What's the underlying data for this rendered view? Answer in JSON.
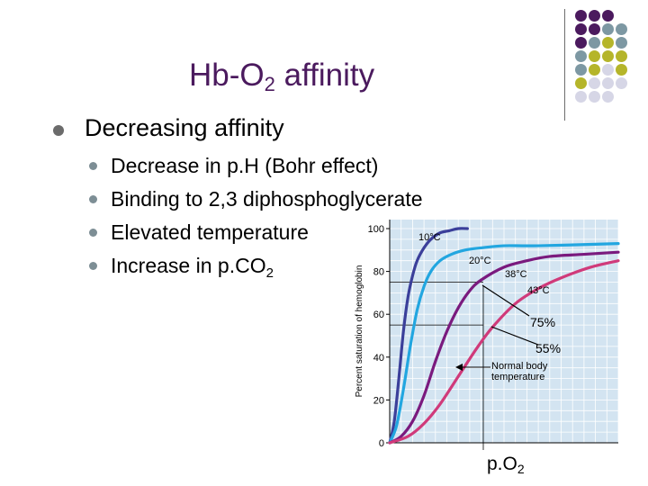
{
  "slide": {
    "title_main": "Hb-O",
    "title_sub": "2",
    "title_rest": " affinity",
    "heading": "Decreasing affinity",
    "bullets": [
      {
        "text": "Decrease in p.H (Bohr effect)",
        "sub": ""
      },
      {
        "text": "Binding to 2,3 diphosphoglycerate",
        "sub": ""
      },
      {
        "text": "Elevated temperature",
        "sub": ""
      },
      {
        "text": "Increase in p.CO",
        "sub": "2"
      }
    ],
    "callout_75": "75%",
    "callout_55": "55%",
    "xlabel_main": "p.O",
    "xlabel_sub": "2",
    "colors": {
      "title": "#4b1a5e",
      "purple": "#4b1a5e",
      "slate": "#7d98a3",
      "olive": "#b5b52a",
      "lilac": "#d6d6e6"
    }
  },
  "chart_data": {
    "type": "line",
    "ylabel": "Percent saturation of hemoglobin",
    "yticks": [
      0,
      20,
      40,
      60,
      80,
      100
    ],
    "ylim": [
      0,
      100
    ],
    "xlim": [
      0,
      100
    ],
    "annotation": "Normal body\ntemperature",
    "series": [
      {
        "name": "10°C",
        "color": "#3b3f9a",
        "x": [
          0,
          2,
          4,
          6,
          8,
          10,
          12,
          15,
          18,
          22,
          26,
          30,
          34
        ],
        "y": [
          0,
          10,
          30,
          52,
          68,
          78,
          85,
          91,
          95,
          98,
          99,
          100,
          100
        ]
      },
      {
        "name": "20°C",
        "color": "#22a6e0",
        "x": [
          0,
          3,
          6,
          9,
          12,
          15,
          18,
          22,
          27,
          33,
          40,
          50,
          65,
          100
        ],
        "y": [
          0,
          8,
          25,
          45,
          62,
          73,
          80,
          85,
          88,
          90,
          91,
          92,
          92,
          93
        ]
      },
      {
        "name": "38°C",
        "color": "#7a1a7e",
        "x": [
          0,
          5,
          10,
          15,
          20,
          25,
          30,
          35,
          40,
          50,
          60,
          70,
          85,
          100
        ],
        "y": [
          0,
          3,
          10,
          22,
          38,
          52,
          63,
          71,
          76,
          82,
          85,
          87,
          88,
          89
        ]
      },
      {
        "name": "43°C",
        "color": "#d03a7a",
        "x": [
          0,
          8,
          15,
          22,
          30,
          38,
          45,
          55,
          65,
          75,
          88,
          100
        ],
        "y": [
          0,
          3,
          9,
          18,
          31,
          44,
          54,
          65,
          72,
          77,
          82,
          85
        ]
      }
    ],
    "guide_lines": [
      75,
      55
    ]
  }
}
